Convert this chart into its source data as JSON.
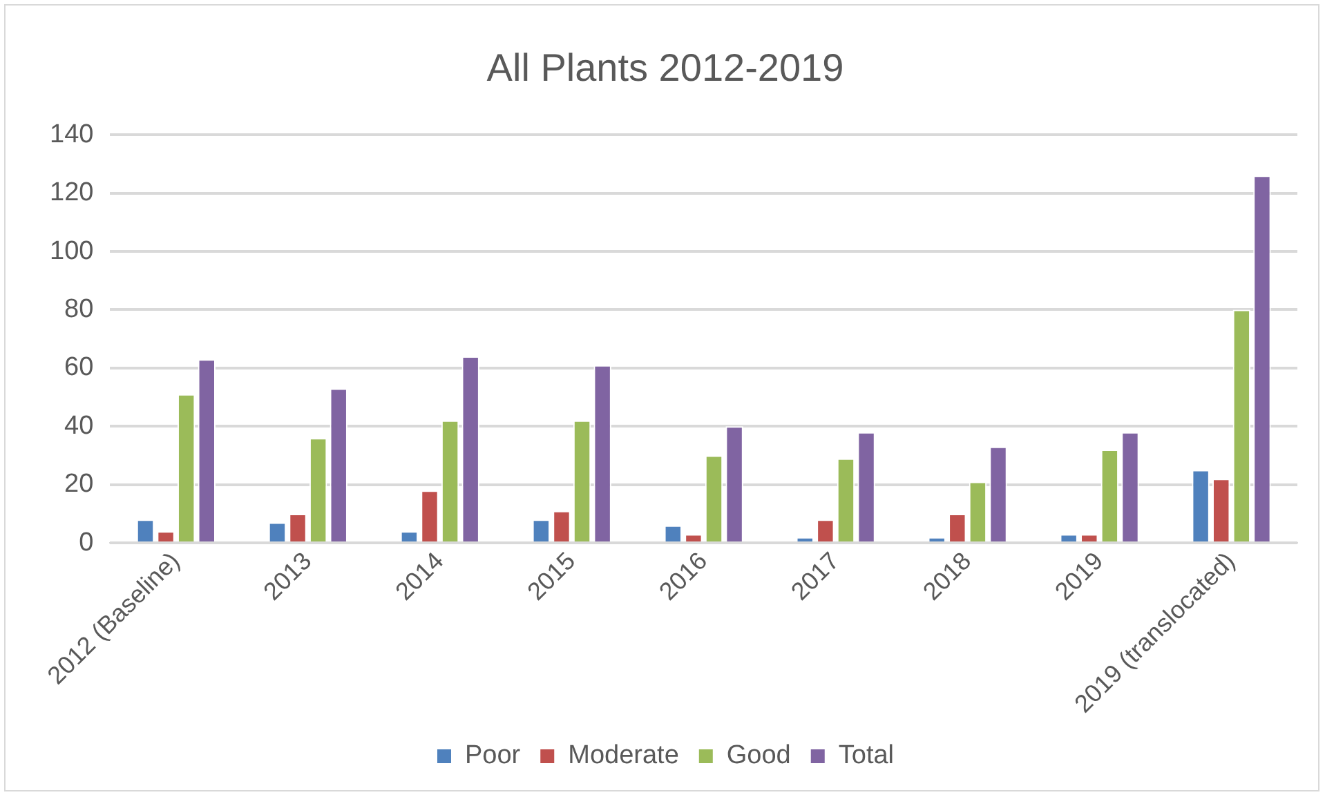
{
  "chart_data": {
    "type": "bar",
    "title": "All Plants 2012-2019",
    "categories": [
      "2012 (Baseline)",
      "2013",
      "2014",
      "2015",
      "2016",
      "2017",
      "2018",
      "2019",
      "2019 (translocated)"
    ],
    "series": [
      {
        "name": "Poor",
        "color": "#4f81bd",
        "values": [
          8,
          7,
          4,
          8,
          6,
          2,
          2,
          3,
          25
        ]
      },
      {
        "name": "Moderate",
        "color": "#c0504d",
        "values": [
          4,
          10,
          18,
          11,
          3,
          8,
          10,
          3,
          22
        ]
      },
      {
        "name": "Good",
        "color": "#9bbb59",
        "values": [
          51,
          36,
          42,
          42,
          30,
          29,
          21,
          32,
          80
        ]
      },
      {
        "name": "Total",
        "color": "#8064a2",
        "values": [
          63,
          53,
          64,
          61,
          40,
          38,
          33,
          38,
          126
        ]
      }
    ],
    "ylim": [
      0,
      140
    ],
    "yticks": [
      0,
      20,
      40,
      60,
      80,
      100,
      120,
      140
    ],
    "grid": "y",
    "legend": "bottom"
  }
}
